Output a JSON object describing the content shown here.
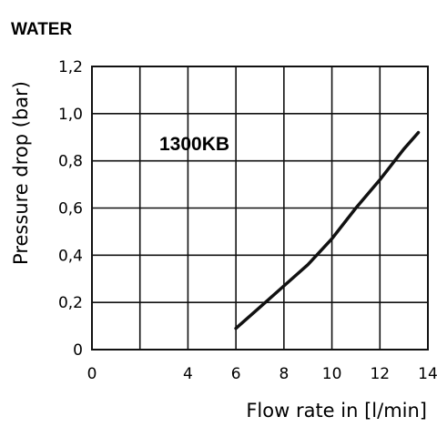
{
  "chart_data": {
    "type": "line",
    "title": "WATER",
    "xlabel": "Flow rate in [l/min]",
    "ylabel": "Pressure drop (bar)",
    "xlim": [
      0,
      14
    ],
    "ylim": [
      0,
      1.2
    ],
    "x_ticks": [
      0,
      2,
      4,
      6,
      8,
      10,
      12,
      14
    ],
    "x_tick_labels": [
      "0",
      "",
      "4",
      "6",
      "8",
      "10",
      "12",
      "14"
    ],
    "y_ticks": [
      0,
      0.2,
      0.4,
      0.6,
      0.8,
      1.0,
      1.2
    ],
    "y_tick_labels": [
      "0",
      "0,2",
      "0,4",
      "0,6",
      "0,8",
      "1,0",
      "1,2"
    ],
    "grid": true,
    "annotation": "1300KB",
    "series": [
      {
        "name": "1300KB",
        "x": [
          6,
          7,
          8,
          9,
          10,
          11,
          12,
          13,
          13.6
        ],
        "y": [
          0.09,
          0.18,
          0.27,
          0.36,
          0.47,
          0.6,
          0.72,
          0.85,
          0.92
        ]
      }
    ]
  }
}
